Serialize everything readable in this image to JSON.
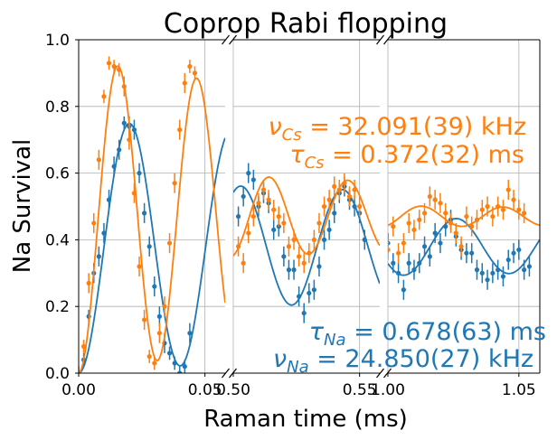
{
  "chart_data": {
    "type": "scatter",
    "title": "Coprop Rabi flopping",
    "xlabel": "Raman time (ms)",
    "ylabel": "Na Survival",
    "ylim": [
      0,
      1
    ],
    "yticks": [
      0.0,
      0.2,
      0.4,
      0.6,
      0.8,
      1.0
    ],
    "ytick_labels": [
      "0.0",
      "0.2",
      "0.4",
      "0.6",
      "0.8",
      "1.0"
    ],
    "grid": true,
    "broken_x_axis": true,
    "panels": [
      {
        "xlim": [
          0,
          0.058
        ],
        "xticks": [
          0.0,
          0.05
        ],
        "xtick_labels": [
          "0.00",
          "0.05"
        ]
      },
      {
        "xlim": [
          0.5,
          0.558
        ],
        "xticks": [
          0.5,
          0.55
        ],
        "xtick_labels": [
          "0.50",
          "0.55"
        ]
      },
      {
        "xlim": [
          1.0,
          1.058
        ],
        "xticks": [
          1.0,
          1.05
        ],
        "xtick_labels": [
          "1.00",
          "1.05"
        ]
      }
    ],
    "series": [
      {
        "color": "#1f77b4",
        "fit": {
          "frequency_khz": 24.85,
          "tau_ms": 0.678,
          "amplitude": 0.38,
          "offset": 0.38
        },
        "annotations": [
          "τ_Na = 0.678(63) ms",
          "ν_Na = 24.850(27) kHz"
        ],
        "points": [
          [
            0.0,
            0.0,
            0.02
          ],
          [
            0.002,
            0.04,
            0.02
          ],
          [
            0.004,
            0.17,
            0.02
          ],
          [
            0.006,
            0.3,
            0.03
          ],
          [
            0.008,
            0.35,
            0.03
          ],
          [
            0.01,
            0.42,
            0.03
          ],
          [
            0.012,
            0.52,
            0.03
          ],
          [
            0.014,
            0.62,
            0.03
          ],
          [
            0.016,
            0.67,
            0.03
          ],
          [
            0.018,
            0.75,
            0.02
          ],
          [
            0.02,
            0.74,
            0.03
          ],
          [
            0.022,
            0.73,
            0.03
          ],
          [
            0.024,
            0.6,
            0.03
          ],
          [
            0.026,
            0.48,
            0.03
          ],
          [
            0.028,
            0.38,
            0.03
          ],
          [
            0.03,
            0.26,
            0.03
          ],
          [
            0.032,
            0.17,
            0.03
          ],
          [
            0.034,
            0.09,
            0.03
          ],
          [
            0.036,
            0.06,
            0.02
          ],
          [
            0.038,
            0.03,
            0.02
          ],
          [
            0.04,
            0.0,
            0.02
          ],
          [
            0.042,
            0.02,
            0.02
          ],
          [
            0.044,
            0.12,
            0.03
          ],
          [
            0.502,
            0.47,
            0.03
          ],
          [
            0.504,
            0.53,
            0.03
          ],
          [
            0.506,
            0.6,
            0.03
          ],
          [
            0.508,
            0.58,
            0.03
          ],
          [
            0.51,
            0.5,
            0.03
          ],
          [
            0.512,
            0.54,
            0.03
          ],
          [
            0.514,
            0.51,
            0.03
          ],
          [
            0.516,
            0.43,
            0.03
          ],
          [
            0.518,
            0.44,
            0.03
          ],
          [
            0.52,
            0.35,
            0.03
          ],
          [
            0.522,
            0.31,
            0.03
          ],
          [
            0.524,
            0.31,
            0.03
          ],
          [
            0.526,
            0.23,
            0.03
          ],
          [
            0.528,
            0.18,
            0.03
          ],
          [
            0.53,
            0.24,
            0.03
          ],
          [
            0.532,
            0.25,
            0.03
          ],
          [
            0.534,
            0.32,
            0.03
          ],
          [
            0.536,
            0.4,
            0.03
          ],
          [
            0.538,
            0.43,
            0.03
          ],
          [
            0.54,
            0.48,
            0.03
          ],
          [
            0.542,
            0.54,
            0.03
          ],
          [
            0.544,
            0.56,
            0.03
          ],
          [
            0.546,
            0.52,
            0.03
          ],
          [
            0.548,
            0.5,
            0.03
          ],
          [
            0.55,
            0.48,
            0.03
          ],
          [
            0.552,
            0.4,
            0.03
          ],
          [
            1.0,
            0.39,
            0.03
          ],
          [
            1.002,
            0.33,
            0.03
          ],
          [
            1.004,
            0.3,
            0.03
          ],
          [
            1.006,
            0.25,
            0.03
          ],
          [
            1.008,
            0.33,
            0.03
          ],
          [
            1.01,
            0.31,
            0.03
          ],
          [
            1.012,
            0.33,
            0.03
          ],
          [
            1.014,
            0.38,
            0.03
          ],
          [
            1.016,
            0.35,
            0.03
          ],
          [
            1.018,
            0.42,
            0.03
          ],
          [
            1.02,
            0.39,
            0.03
          ],
          [
            1.022,
            0.44,
            0.03
          ],
          [
            1.024,
            0.46,
            0.03
          ],
          [
            1.026,
            0.41,
            0.03
          ],
          [
            1.028,
            0.37,
            0.03
          ],
          [
            1.03,
            0.36,
            0.03
          ],
          [
            1.032,
            0.36,
            0.03
          ],
          [
            1.034,
            0.31,
            0.03
          ],
          [
            1.036,
            0.3,
            0.03
          ],
          [
            1.038,
            0.28,
            0.03
          ],
          [
            1.04,
            0.3,
            0.03
          ],
          [
            1.042,
            0.31,
            0.03
          ],
          [
            1.044,
            0.29,
            0.03
          ],
          [
            1.046,
            0.34,
            0.03
          ],
          [
            1.048,
            0.36,
            0.03
          ],
          [
            1.05,
            0.37,
            0.03
          ],
          [
            1.052,
            0.31,
            0.03
          ],
          [
            1.054,
            0.32,
            0.03
          ]
        ]
      },
      {
        "color": "#ff7f0e",
        "fit": {
          "frequency_khz": 32.091,
          "tau_ms": 0.372,
          "amplitude": 0.47,
          "offset": 0.47
        },
        "annotations": [
          "ν_Cs = 32.091(39) kHz",
          "τ_Cs = 0.372(32) ms"
        ],
        "points": [
          [
            0.0,
            0.0,
            0.02
          ],
          [
            0.002,
            0.08,
            0.02
          ],
          [
            0.004,
            0.27,
            0.03
          ],
          [
            0.006,
            0.45,
            0.03
          ],
          [
            0.008,
            0.64,
            0.03
          ],
          [
            0.01,
            0.83,
            0.02
          ],
          [
            0.012,
            0.93,
            0.02
          ],
          [
            0.014,
            0.92,
            0.02
          ],
          [
            0.016,
            0.91,
            0.02
          ],
          [
            0.018,
            0.86,
            0.03
          ],
          [
            0.02,
            0.7,
            0.03
          ],
          [
            0.022,
            0.54,
            0.03
          ],
          [
            0.024,
            0.32,
            0.03
          ],
          [
            0.026,
            0.16,
            0.03
          ],
          [
            0.028,
            0.05,
            0.02
          ],
          [
            0.03,
            0.03,
            0.02
          ],
          [
            0.032,
            0.12,
            0.03
          ],
          [
            0.034,
            0.2,
            0.03
          ],
          [
            0.036,
            0.39,
            0.03
          ],
          [
            0.038,
            0.57,
            0.03
          ],
          [
            0.04,
            0.73,
            0.03
          ],
          [
            0.042,
            0.87,
            0.03
          ],
          [
            0.044,
            0.92,
            0.02
          ],
          [
            0.046,
            0.9,
            0.02
          ],
          [
            0.502,
            0.38,
            0.03
          ],
          [
            0.504,
            0.33,
            0.03
          ],
          [
            0.506,
            0.42,
            0.03
          ],
          [
            0.508,
            0.47,
            0.03
          ],
          [
            0.51,
            0.51,
            0.03
          ],
          [
            0.512,
            0.55,
            0.03
          ],
          [
            0.514,
            0.52,
            0.03
          ],
          [
            0.516,
            0.49,
            0.03
          ],
          [
            0.518,
            0.47,
            0.03
          ],
          [
            0.52,
            0.45,
            0.03
          ],
          [
            0.522,
            0.38,
            0.03
          ],
          [
            0.524,
            0.4,
            0.03
          ],
          [
            0.526,
            0.35,
            0.03
          ],
          [
            0.528,
            0.33,
            0.03
          ],
          [
            0.53,
            0.36,
            0.03
          ],
          [
            0.532,
            0.4,
            0.03
          ],
          [
            0.534,
            0.45,
            0.03
          ],
          [
            0.536,
            0.5,
            0.03
          ],
          [
            0.538,
            0.52,
            0.03
          ],
          [
            0.54,
            0.56,
            0.03
          ],
          [
            0.542,
            0.55,
            0.03
          ],
          [
            0.544,
            0.57,
            0.03
          ],
          [
            0.546,
            0.53,
            0.03
          ],
          [
            0.548,
            0.55,
            0.03
          ],
          [
            0.55,
            0.5,
            0.03
          ],
          [
            1.0,
            0.37,
            0.03
          ],
          [
            1.002,
            0.44,
            0.03
          ],
          [
            1.004,
            0.36,
            0.03
          ],
          [
            1.006,
            0.39,
            0.03
          ],
          [
            1.008,
            0.45,
            0.03
          ],
          [
            1.01,
            0.43,
            0.03
          ],
          [
            1.012,
            0.46,
            0.03
          ],
          [
            1.014,
            0.48,
            0.03
          ],
          [
            1.016,
            0.53,
            0.03
          ],
          [
            1.018,
            0.52,
            0.03
          ],
          [
            1.02,
            0.51,
            0.03
          ],
          [
            1.022,
            0.48,
            0.03
          ],
          [
            1.024,
            0.45,
            0.03
          ],
          [
            1.026,
            0.42,
            0.03
          ],
          [
            1.028,
            0.38,
            0.03
          ],
          [
            1.03,
            0.47,
            0.03
          ],
          [
            1.032,
            0.44,
            0.03
          ],
          [
            1.034,
            0.46,
            0.03
          ],
          [
            1.036,
            0.49,
            0.03
          ],
          [
            1.038,
            0.5,
            0.03
          ],
          [
            1.04,
            0.47,
            0.03
          ],
          [
            1.042,
            0.5,
            0.03
          ],
          [
            1.044,
            0.49,
            0.03
          ],
          [
            1.046,
            0.55,
            0.03
          ],
          [
            1.048,
            0.52,
            0.03
          ],
          [
            1.05,
            0.49,
            0.03
          ],
          [
            1.052,
            0.48,
            0.03
          ]
        ]
      }
    ]
  }
}
